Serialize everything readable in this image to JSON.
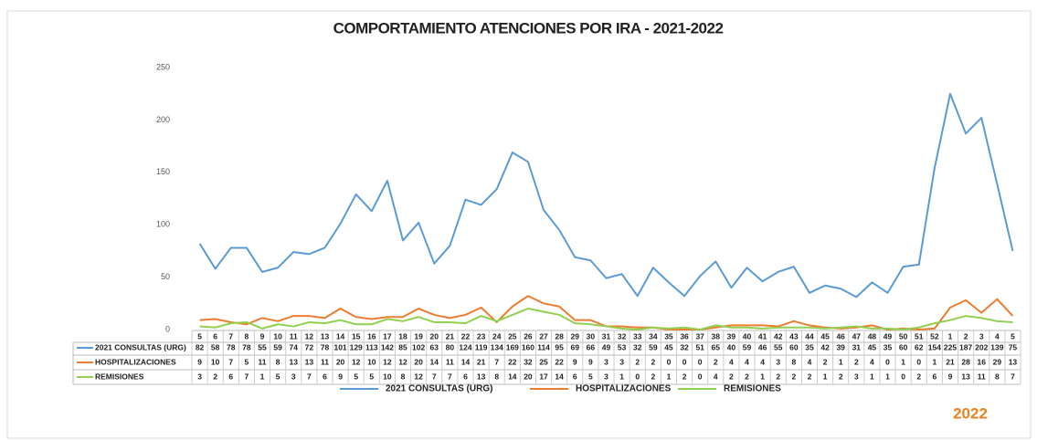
{
  "chart_data": {
    "type": "line",
    "title": "COMPORTAMIENTO ATENCIONES POR IRA - 2021-2022",
    "annotation": "2022",
    "categories": [
      "5",
      "6",
      "7",
      "8",
      "9",
      "10",
      "11",
      "12",
      "13",
      "14",
      "15",
      "16",
      "17",
      "18",
      "19",
      "20",
      "21",
      "22",
      "23",
      "24",
      "25",
      "26",
      "27",
      "28",
      "29",
      "30",
      "31",
      "32",
      "33",
      "34",
      "35",
      "36",
      "37",
      "38",
      "39",
      "40",
      "41",
      "42",
      "43",
      "44",
      "45",
      "46",
      "47",
      "48",
      "49",
      "50",
      "51",
      "52",
      "1",
      "2",
      "3",
      "4",
      "5"
    ],
    "series": [
      {
        "name": "2021 CONSULTAS (URG)",
        "color": "#5b9bd5",
        "values": [
          82,
          58,
          78,
          78,
          55,
          59,
          74,
          72,
          78,
          101,
          129,
          113,
          142,
          85,
          102,
          63,
          80,
          124,
          119,
          134,
          169,
          160,
          114,
          95,
          69,
          66,
          49,
          53,
          32,
          59,
          45,
          32,
          51,
          65,
          40,
          59,
          46,
          55,
          60,
          35,
          42,
          39,
          31,
          45,
          35,
          60,
          62,
          154,
          225,
          187,
          202,
          139,
          75
        ]
      },
      {
        "name": "HOSPITALIZACIONES",
        "color": "#ed7d31",
        "values": [
          9,
          10,
          7,
          5,
          11,
          8,
          13,
          13,
          11,
          20,
          12,
          10,
          12,
          12,
          20,
          14,
          11,
          14,
          21,
          7,
          22,
          32,
          25,
          22,
          9,
          9,
          3,
          3,
          2,
          2,
          0,
          0,
          0,
          2,
          4,
          4,
          4,
          3,
          8,
          4,
          2,
          1,
          2,
          4,
          0,
          1,
          0,
          1,
          21,
          28,
          16,
          29,
          13
        ]
      },
      {
        "name": "REMISIONES",
        "color": "#92d050",
        "values": [
          3,
          2,
          6,
          7,
          1,
          5,
          3,
          7,
          6,
          9,
          5,
          5,
          10,
          8,
          12,
          7,
          7,
          6,
          13,
          8,
          14,
          20,
          17,
          14,
          6,
          5,
          3,
          1,
          0,
          2,
          1,
          2,
          0,
          4,
          2,
          2,
          1,
          2,
          2,
          2,
          1,
          2,
          3,
          1,
          1,
          0,
          2,
          6,
          9,
          13,
          11,
          8,
          7
        ]
      }
    ],
    "ylim": [
      0,
      250
    ],
    "yticks": [
      0,
      50,
      100,
      150,
      200,
      250
    ],
    "grid": false,
    "legend": "bottom"
  }
}
